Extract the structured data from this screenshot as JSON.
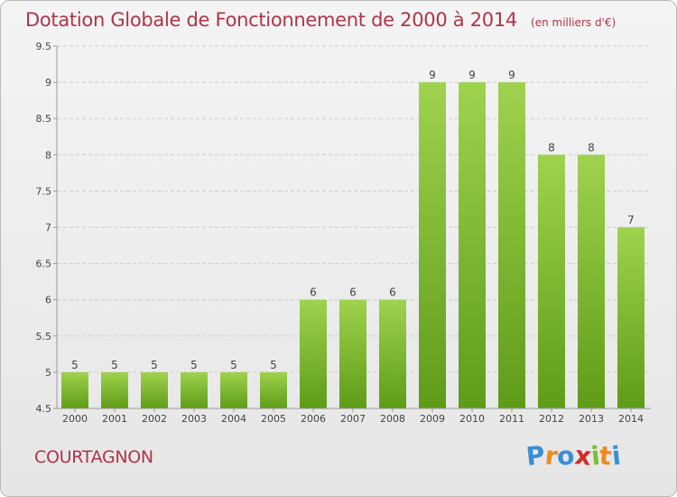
{
  "header": {
    "title": "Dotation Globale de Fonctionnement de 2000 à 2014",
    "subtitle": "(en milliers d'€)"
  },
  "footer": {
    "commune": "COURTAGNON",
    "logo_text": "Proxiti"
  },
  "colors": {
    "title": "#b0344a",
    "bar_top": "#9fd24f",
    "bar_bottom": "#5e9c17",
    "grid": "#cfcfcf",
    "axis": "#9a9a9a",
    "logo_letters": [
      "#3a8fd4",
      "#f08a1e",
      "#3a8fd4",
      "#d42b2b",
      "#7bbf2a",
      "#f08a1e",
      "#3a8fd4"
    ]
  },
  "chart_data": {
    "type": "bar",
    "categories": [
      "2000",
      "2001",
      "2002",
      "2003",
      "2004",
      "2005",
      "2006",
      "2007",
      "2008",
      "2009",
      "2010",
      "2011",
      "2012",
      "2013",
      "2014"
    ],
    "values": [
      5,
      5,
      5,
      5,
      5,
      5,
      6,
      6,
      6,
      9,
      9,
      9,
      8,
      8,
      7
    ],
    "data_labels": [
      "5",
      "5",
      "5",
      "5",
      "5",
      "5",
      "6",
      "6",
      "6",
      "9",
      "9",
      "9",
      "8",
      "8",
      "7"
    ],
    "ylim": [
      4.5,
      9.5
    ],
    "yticks": [
      "4.5",
      "5",
      "5.5",
      "6",
      "6.5",
      "7",
      "7.5",
      "8",
      "8.5",
      "9",
      "9.5"
    ],
    "grid": true,
    "xlabel": "",
    "ylabel": ""
  }
}
